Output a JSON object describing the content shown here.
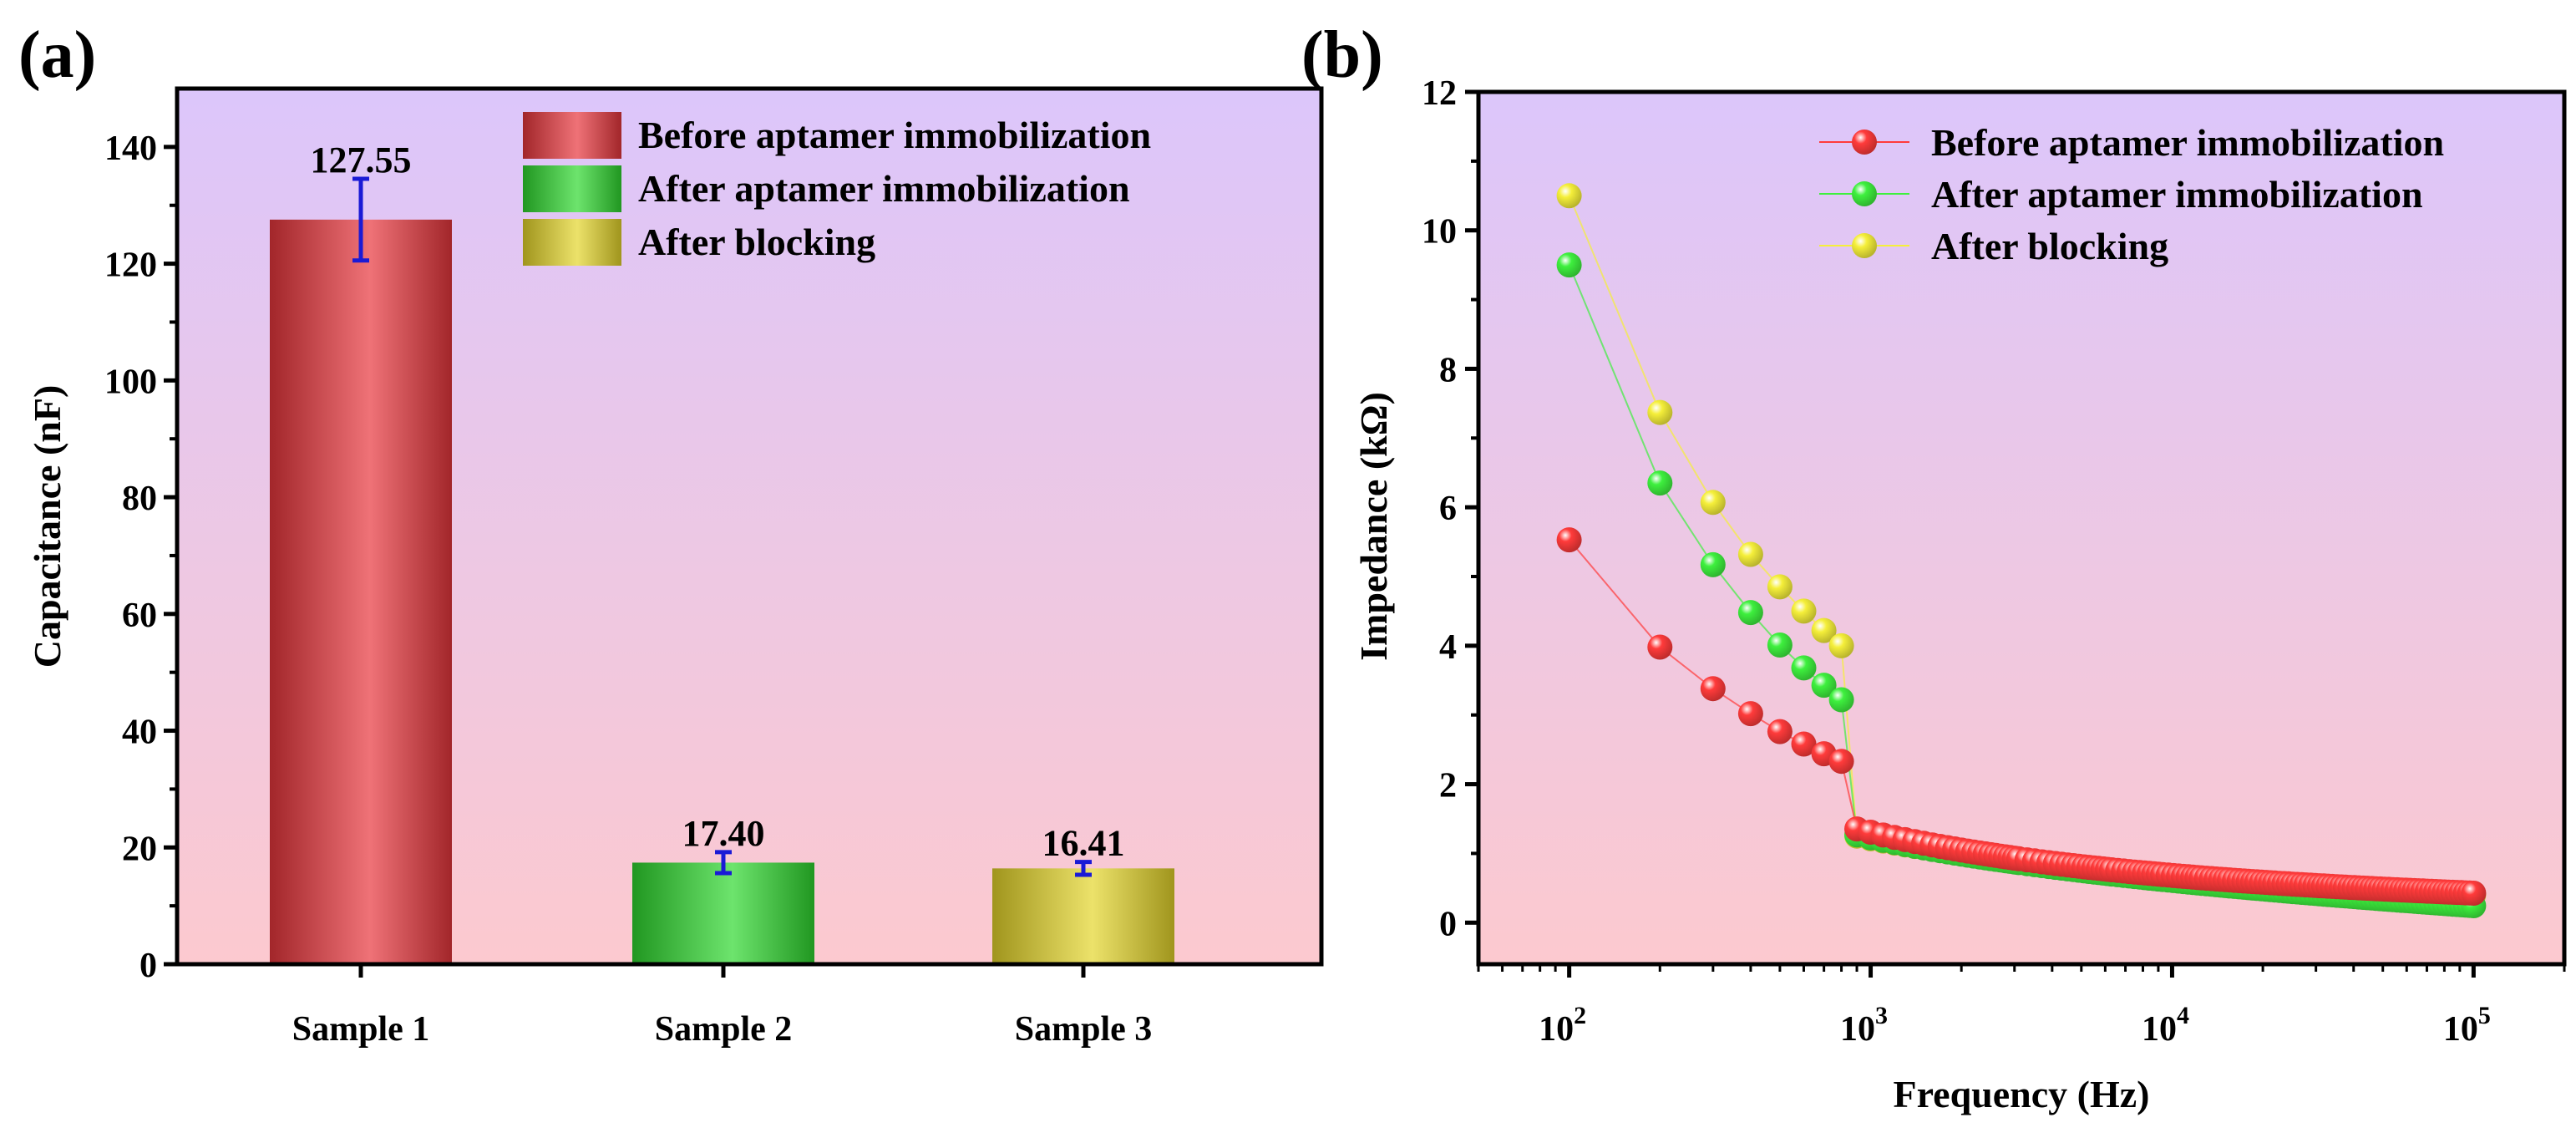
{
  "panel_a": {
    "label": "(a)"
  },
  "panel_b": {
    "label": "(b)"
  },
  "chart_data": [
    {
      "panel": "(a)",
      "type": "bar",
      "title": "",
      "xlabel": "",
      "ylabel": "Capacitance (nF)",
      "categories": [
        "Sample 1",
        "Sample 2",
        "Sample 3"
      ],
      "values": [
        127.55,
        17.4,
        16.41
      ],
      "value_labels": [
        "127.55",
        "17.40",
        "16.41"
      ],
      "error": [
        7.0,
        1.8,
        1.1
      ],
      "ylim": [
        0,
        150
      ],
      "yticks": [
        0,
        20,
        40,
        60,
        80,
        100,
        120,
        140
      ],
      "legend": [
        "Before aptamer immobilization",
        "After aptamer immobilization",
        "After blocking"
      ],
      "legend_position": "top-right",
      "colors": [
        "#e8363c",
        "#2fd82f",
        "#e4d52a"
      ],
      "error_bar_color": "#1a1ad6",
      "background_gradient": [
        "#dcc6fb",
        "#fcc9cf"
      ]
    },
    {
      "panel": "(b)",
      "type": "scatter",
      "title": "",
      "xlabel": "Frequency (Hz)",
      "ylabel": "Impedance (kΩ)",
      "xscale": "log",
      "xlim": [
        50,
        200000
      ],
      "ylim": [
        -0.6,
        12
      ],
      "yticks": [
        0,
        2,
        4,
        6,
        8,
        10,
        12
      ],
      "xticks": [
        100,
        1000,
        10000,
        100000
      ],
      "xtick_labels": [
        {
          "base": "10",
          "exp": "2"
        },
        {
          "base": "10",
          "exp": "3"
        },
        {
          "base": "10",
          "exp": "4"
        },
        {
          "base": "10",
          "exp": "5"
        }
      ],
      "legend_position": "top-right",
      "background_gradient": [
        "#dcc6fb",
        "#fcc9cf"
      ],
      "series": [
        {
          "name": "Before aptamer immobilization",
          "color": "#ff3b3b",
          "light": "#ffd0d0",
          "first_points": [
            [
              100,
              5.53
            ],
            [
              200,
              3.98
            ],
            [
              300,
              3.38
            ],
            [
              400,
              3.02
            ],
            [
              500,
              2.76
            ],
            [
              600,
              2.58
            ],
            [
              700,
              2.44
            ],
            [
              800,
              2.33
            ]
          ],
          "model": {
            "a": 0.35,
            "b": 2.4,
            "c": 1.5,
            "d": 1.0,
            "k": 0.27
          }
        },
        {
          "name": "After aptamer immobilization",
          "color": "#3ef03e",
          "light": "#d2ffd2",
          "first_points": [
            [
              100,
              9.5
            ],
            [
              200,
              6.35
            ],
            [
              300,
              5.17
            ],
            [
              400,
              4.48
            ],
            [
              500,
              4.01
            ],
            [
              600,
              3.68
            ],
            [
              700,
              3.43
            ],
            [
              800,
              3.22
            ]
          ],
          "model": {
            "a": 0.2,
            "b": 1.4,
            "c": 5.0,
            "d": 0.63,
            "k": 0.79
          }
        },
        {
          "name": "After blocking",
          "color": "#f5ef3a",
          "light": "#fffbd0",
          "first_points": [
            [
              100,
              10.5
            ],
            [
              200,
              7.37
            ],
            [
              300,
              6.07
            ],
            [
              400,
              5.32
            ],
            [
              500,
              4.85
            ],
            [
              600,
              4.5
            ],
            [
              700,
              4.22
            ],
            [
              800,
              4.0
            ]
          ],
          "model": {
            "a": 0.35,
            "b": 1.6,
            "c": 3.2,
            "d": 1.2,
            "k": 0.48
          }
        }
      ]
    }
  ]
}
